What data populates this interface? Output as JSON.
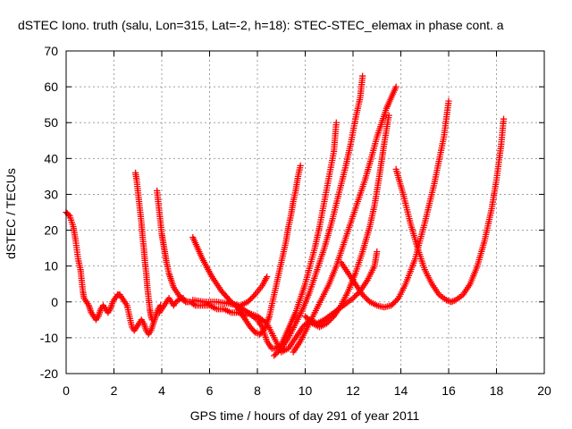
{
  "chart_data": {
    "type": "scatter",
    "title": "dSTEC Iono. truth (salu, Lon=315, Lat=-2, h=18): STEC-STEC_elemax in phase cont. a",
    "xlabel": "GPS time / hours of day 291 of year 2011",
    "ylabel": "dSTEC  / TECUs",
    "xlim": [
      0,
      20
    ],
    "ylim": [
      -20,
      70
    ],
    "xticks": [
      0,
      2,
      4,
      6,
      8,
      10,
      12,
      14,
      16,
      18,
      20
    ],
    "yticks": [
      -20,
      -10,
      0,
      10,
      20,
      30,
      40,
      50,
      60,
      70
    ],
    "grid": true,
    "legend": "none",
    "marker": "plus",
    "color": "#ff0000",
    "series": [
      {
        "x": [
          0.0,
          0.15,
          0.3,
          0.4,
          0.5,
          0.6,
          0.7,
          0.75,
          0.85,
          0.95,
          1.05,
          1.15,
          1.25,
          1.35,
          1.45,
          1.55,
          1.65,
          1.75,
          1.85,
          1.95,
          2.05,
          2.15,
          2.25,
          2.35,
          2.45,
          2.55,
          2.65,
          2.75,
          2.85,
          2.95,
          3.05,
          3.15,
          3.25,
          3.35,
          3.45,
          3.55,
          3.65,
          3.75,
          3.85,
          3.95
        ],
        "y": [
          25,
          24,
          21,
          17,
          12,
          9,
          3,
          1,
          0,
          -1,
          -3,
          -4,
          -5,
          -4,
          -2,
          -1,
          -2,
          -3,
          -2,
          0,
          1,
          2,
          2,
          1,
          0,
          -1,
          -4,
          -7,
          -8,
          -7,
          -6,
          -5,
          -6,
          -8,
          -9,
          -8,
          -6,
          -4,
          -2,
          -1
        ]
      },
      {
        "x": [
          2.9,
          2.95,
          3.0,
          3.05,
          3.1,
          3.15,
          3.2,
          3.25,
          3.3,
          3.35,
          3.4,
          3.45,
          3.5,
          3.55,
          3.6
        ],
        "y": [
          36,
          34,
          31,
          28,
          25,
          22,
          18,
          15,
          11,
          8,
          4,
          1,
          -2,
          -4,
          -5
        ]
      },
      {
        "x": [
          3.8,
          3.85,
          3.9,
          3.95,
          4.0,
          4.05,
          4.1,
          4.15,
          4.2,
          4.3,
          4.4,
          4.5,
          4.6,
          4.7,
          4.8,
          4.9,
          5.0,
          5.2,
          5.4,
          5.7,
          6.0,
          6.3,
          6.6,
          6.9,
          7.2,
          7.5
        ],
        "y": [
          31,
          28,
          25,
          22,
          19,
          17,
          15,
          13,
          11,
          8,
          6,
          4,
          3,
          2,
          1,
          1,
          0,
          0,
          -1,
          -1,
          -1,
          -2,
          -2,
          -3,
          -3,
          -4
        ]
      },
      {
        "x": [
          3.9,
          4.0,
          4.1,
          4.2,
          4.3,
          4.4,
          4.5,
          4.6,
          4.8,
          5.0
        ],
        "y": [
          -3,
          -2,
          -1,
          0,
          1,
          0,
          -1,
          0,
          1,
          0
        ]
      },
      {
        "x": [
          5.3,
          5.5,
          5.7,
          5.9,
          6.1,
          6.3,
          6.5,
          6.7,
          6.9,
          7.1,
          7.3,
          7.5,
          7.7,
          7.9,
          8.1,
          8.2,
          8.3,
          8.4,
          8.5,
          8.6,
          8.7,
          8.8,
          8.9,
          9.0,
          9.1,
          9.2,
          9.3,
          9.4,
          9.5,
          9.6,
          9.7,
          9.8
        ],
        "y": [
          18,
          15,
          12,
          9.5,
          7,
          5,
          3,
          1.5,
          0,
          -1,
          -3,
          -5,
          -7,
          -8.5,
          -9,
          -8.5,
          -7.5,
          -6,
          -4,
          -1,
          2,
          5,
          8,
          11,
          14,
          17,
          21,
          24,
          28,
          31,
          35,
          38
        ]
      },
      {
        "x": [
          5.3,
          5.8,
          6.3,
          6.8,
          7.3,
          7.6,
          7.9,
          8.2,
          8.4
        ],
        "y": [
          0.5,
          0,
          0,
          -0.5,
          -1,
          0,
          2,
          4.5,
          7
        ]
      },
      {
        "x": [
          6.8,
          7.1,
          7.4,
          7.7,
          8.0,
          8.2,
          8.4,
          8.6,
          8.8,
          9.0,
          9.2,
          9.4,
          9.6,
          9.8,
          10.0,
          10.2,
          10.4,
          10.6,
          10.8,
          11.0,
          11.2,
          11.3
        ],
        "y": [
          0,
          -1,
          -2,
          -3.5,
          -5,
          -7,
          -11,
          -13,
          -13,
          -12,
          -9,
          -6,
          -3,
          1,
          5,
          10,
          15,
          21,
          28,
          35,
          42,
          50
        ]
      },
      {
        "x": [
          7.6,
          8.0,
          8.4,
          8.7,
          9.0,
          9.3,
          9.6,
          9.9,
          10.2,
          10.5,
          10.8,
          11.1,
          11.4,
          11.7,
          12.0,
          12.3,
          12.6,
          12.9,
          13.0
        ],
        "y": [
          -3,
          -4,
          -6,
          -10,
          -14,
          -13,
          -10,
          -7,
          -5,
          -6,
          -5,
          -3.5,
          -2,
          -0.5,
          1,
          3,
          6,
          10,
          14
        ]
      },
      {
        "x": [
          8.7,
          9.0,
          9.3,
          9.6,
          9.9,
          10.2,
          10.5,
          10.8,
          11.1,
          11.4,
          11.7,
          11.9,
          12.1,
          12.3,
          12.4
        ],
        "y": [
          -15,
          -13,
          -10,
          -6,
          -2,
          3,
          9,
          15,
          22,
          30,
          38,
          44,
          51,
          57,
          63
        ]
      },
      {
        "x": [
          9.5,
          9.8,
          10.1,
          10.4,
          10.7,
          11.0,
          11.3,
          11.6,
          11.9,
          12.2,
          12.5,
          12.8,
          13.0,
          13.2,
          13.4,
          13.6,
          13.8
        ],
        "y": [
          -14,
          -11,
          -7,
          -3,
          1,
          5,
          10,
          16,
          22,
          28,
          34,
          41,
          46,
          50,
          54,
          57,
          60
        ]
      },
      {
        "x": [
          10.0,
          10.3,
          10.6,
          10.9,
          11.2,
          11.5,
          11.8,
          12.1,
          12.4,
          12.7,
          12.9,
          13.1,
          13.3,
          13.5
        ],
        "y": [
          -4,
          -6,
          -7,
          -6,
          -4,
          -1,
          3,
          8,
          14,
          21,
          27,
          35,
          44,
          52
        ]
      },
      {
        "x": [
          11.5,
          11.8,
          12.1,
          12.4,
          12.7,
          13.0,
          13.3,
          13.6,
          13.9,
          14.2,
          14.6,
          15.0,
          15.4,
          15.8,
          16.0
        ],
        "y": [
          11,
          8,
          5,
          2,
          0,
          -1,
          -1.5,
          -1,
          1,
          5,
          12,
          22,
          33,
          46,
          56
        ]
      },
      {
        "x": [
          13.8,
          14.1,
          14.4,
          14.7,
          15.0,
          15.3,
          15.6,
          15.9,
          16.1,
          16.3,
          16.6,
          16.9,
          17.2,
          17.5,
          17.8,
          18.0,
          18.2,
          18.3
        ],
        "y": [
          37,
          30,
          22,
          15,
          9,
          5,
          2,
          0.5,
          0,
          0.5,
          2,
          5,
          10,
          17,
          26,
          34,
          44,
          51
        ]
      }
    ]
  }
}
